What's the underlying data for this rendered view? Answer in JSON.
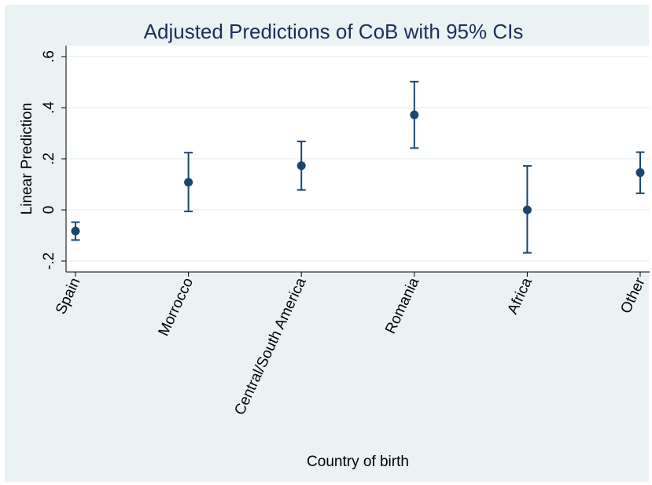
{
  "chart_data": {
    "type": "scatter",
    "title": "Adjusted Predictions of CoB with 95% CIs",
    "xlabel": "Country of birth",
    "ylabel": "Linear Prediction",
    "categories": [
      "Spain",
      "Morrocco",
      "Central/South America",
      "Romania",
      "Africa",
      "Other"
    ],
    "series": [
      {
        "values": [
          -0.083,
          0.108,
          0.173,
          0.372,
          0.0,
          0.146
        ],
        "ci_low": [
          -0.118,
          -0.006,
          0.078,
          0.242,
          -0.168,
          0.065
        ],
        "ci_high": [
          -0.048,
          0.224,
          0.268,
          0.502,
          0.172,
          0.226
        ]
      }
    ],
    "yticks": [
      -0.2,
      0,
      0.2,
      0.4,
      0.6
    ],
    "ytick_labels": [
      "-.2",
      "0",
      ".2",
      ".4",
      ".6"
    ],
    "ylim": [
      -0.23,
      0.65
    ],
    "grid": true,
    "colors": {
      "outer_background": "#eaf2f3",
      "plot_background": "#ffffff",
      "marker": "#1a476f",
      "title": "#1a2e5a",
      "grid": "#eaf2f3"
    }
  }
}
